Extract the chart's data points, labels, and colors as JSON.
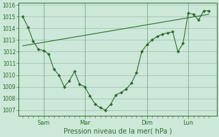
{
  "xlabel": "Pression niveau de la mer( hPa )",
  "bg_color": "#cce8d8",
  "line_color": "#2d6a2d",
  "grid_color": "#9abfaa",
  "x_tick_labels": [
    "Sam",
    "Mar",
    "Dim",
    "Lun"
  ],
  "x_tick_positions": [
    24,
    72,
    144,
    192
  ],
  "ylim": [
    1006.5,
    1016.2
  ],
  "yticks": [
    1007,
    1008,
    1009,
    1010,
    1011,
    1012,
    1013,
    1014,
    1015,
    1016
  ],
  "main_x": [
    0,
    6,
    12,
    18,
    24,
    30,
    36,
    42,
    48,
    54,
    60,
    66,
    72,
    78,
    84,
    90,
    96,
    102,
    108,
    114,
    120,
    126,
    132,
    138,
    144,
    150,
    156,
    162,
    168,
    174,
    180,
    186,
    192,
    198,
    204,
    210,
    216
  ],
  "main_y": [
    1015.0,
    1014.1,
    1012.9,
    1012.2,
    1012.1,
    1011.8,
    1010.5,
    1010.0,
    1009.0,
    1009.5,
    1010.3,
    1009.2,
    1009.0,
    1008.2,
    1007.5,
    1007.2,
    1007.0,
    1007.5,
    1008.3,
    1008.5,
    1008.8,
    1009.3,
    1010.2,
    1012.0,
    1012.6,
    1013.0,
    1013.3,
    1013.5,
    1013.6,
    1013.7,
    1012.0,
    1012.7,
    1015.3,
    1015.2,
    1014.7,
    1015.5,
    1015.5
  ],
  "trend_x": [
    0,
    216
  ],
  "trend_y": [
    1012.5,
    1015.2
  ],
  "xlim": [
    -5,
    225
  ]
}
